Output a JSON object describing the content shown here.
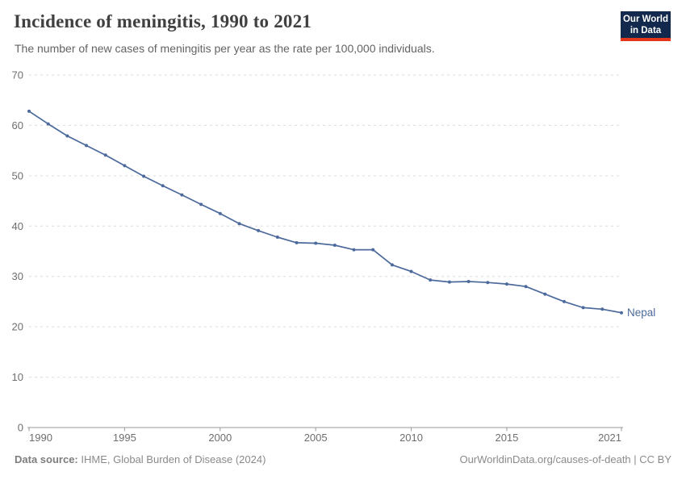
{
  "header": {
    "title": "Incidence of meningitis, 1990 to 2021",
    "subtitle": "The number of new cases of meningitis per year as the rate per 100,000 individuals.",
    "logo": {
      "line1": "Our World",
      "line2": "in Data"
    }
  },
  "chart_data": {
    "type": "line",
    "title": "Incidence of meningitis, 1990 to 2021",
    "xlabel": "",
    "ylabel": "",
    "xlim": [
      1990,
      2021
    ],
    "ylim": [
      0,
      70
    ],
    "x_ticks": [
      1990,
      1995,
      2000,
      2005,
      2010,
      2015,
      2021
    ],
    "y_ticks": [
      0,
      10,
      20,
      30,
      40,
      50,
      60,
      70
    ],
    "grid": "horizontal-dashed",
    "legend_position": "end-of-line",
    "x": [
      1990,
      1991,
      1992,
      1993,
      1994,
      1995,
      1996,
      1997,
      1998,
      1999,
      2000,
      2001,
      2002,
      2003,
      2004,
      2005,
      2006,
      2007,
      2008,
      2009,
      2010,
      2011,
      2012,
      2013,
      2014,
      2015,
      2016,
      2017,
      2018,
      2019,
      2020,
      2021
    ],
    "series": [
      {
        "name": "Nepal",
        "color": "#4c6a9c",
        "values": [
          62.8,
          60.3,
          57.9,
          56.0,
          54.1,
          52.0,
          49.9,
          48.0,
          46.2,
          44.3,
          42.5,
          40.5,
          39.1,
          37.8,
          36.7,
          36.6,
          36.2,
          35.3,
          35.3,
          32.3,
          31.0,
          29.3,
          28.9,
          29.0,
          28.8,
          28.5,
          28.0,
          26.5,
          25.0,
          23.8,
          23.5,
          22.8
        ]
      }
    ]
  },
  "footer": {
    "source_label": "Data source:",
    "source_text": "IHME, Global Burden of Disease (2024)",
    "right_text": "OurWorldinData.org/causes-of-death | CC BY"
  },
  "colors": {
    "line": "#4c6a9c",
    "logo_bg": "#12294d",
    "logo_bar": "#e2361d",
    "grid": "#dcdcdc",
    "axis": "#9a9a9a",
    "tick_text": "#6e6e6e"
  }
}
